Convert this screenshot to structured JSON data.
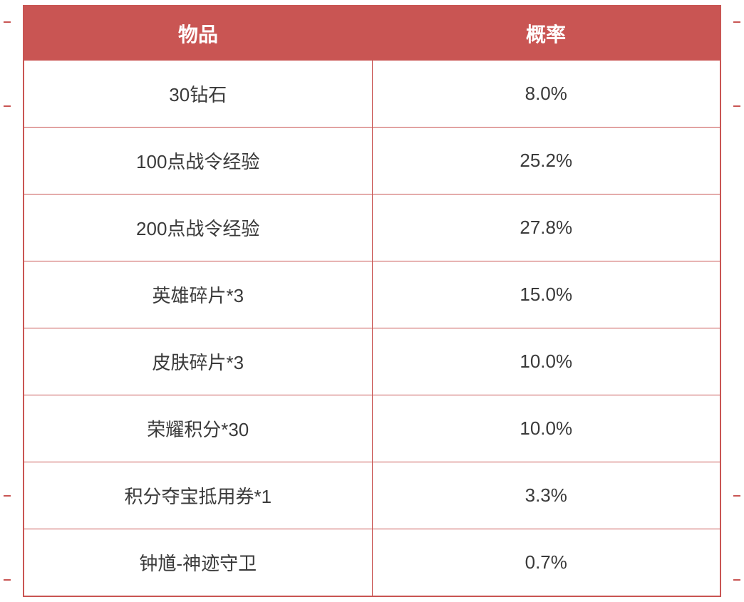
{
  "table": {
    "columns": [
      "物品",
      "概率"
    ],
    "rows": [
      [
        "30钻石",
        "8.0%"
      ],
      [
        "100点战令经验",
        "25.2%"
      ],
      [
        "200点战令经验",
        "27.8%"
      ],
      [
        "英雄碎片*3",
        "15.0%"
      ],
      [
        "皮肤碎片*3",
        "10.0%"
      ],
      [
        "荣耀积分*30",
        "10.0%"
      ],
      [
        "积分夺宝抵用券*1",
        "3.3%"
      ],
      [
        "钟馗-神迹守卫",
        "0.7%"
      ]
    ],
    "header_bg_color": "#c95553",
    "header_text_color": "#ffffff",
    "border_color": "#c95553",
    "cell_text_color": "#3a3a3a",
    "header_fontsize": 28,
    "cell_fontsize": 26
  }
}
